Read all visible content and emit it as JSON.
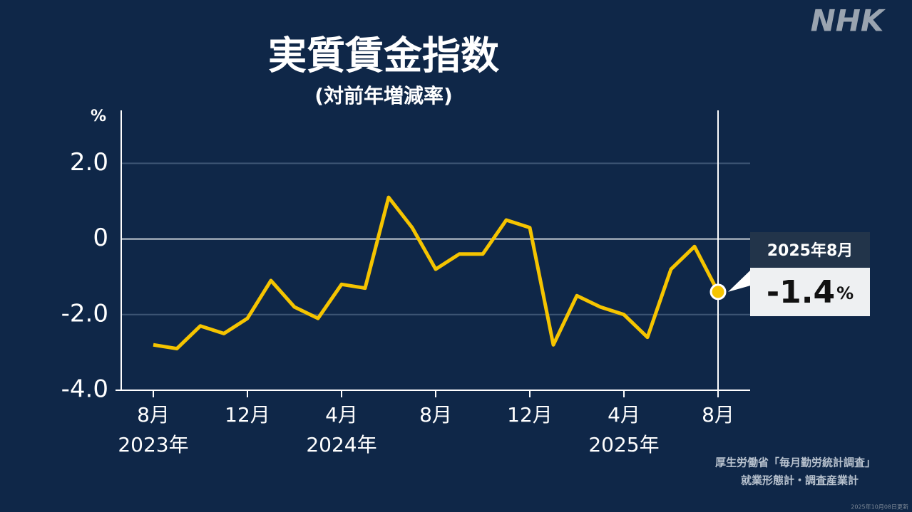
{
  "logo": "NHK",
  "updated": "2025年10月08日更新",
  "source": [
    "厚生労働省「毎月勤労統計調査」",
    "就業形態計・調査産業計"
  ],
  "chart_data": {
    "type": "line",
    "title": "実質賃金指数",
    "subtitle": "(対前年増減率)",
    "y_unit": "%",
    "categories": [
      "8月",
      null,
      null,
      null,
      "12月",
      null,
      null,
      null,
      "4月",
      null,
      null,
      null,
      "8月",
      null,
      null,
      null,
      "12月",
      null,
      null,
      null,
      "4月",
      null,
      null,
      null,
      "8月"
    ],
    "years": [
      "2023年",
      null,
      null,
      null,
      null,
      null,
      null,
      null,
      "2024年",
      null,
      null,
      null,
      null,
      null,
      null,
      null,
      null,
      null,
      null,
      null,
      "2025年",
      null,
      null,
      null,
      null
    ],
    "series": [
      {
        "name": "実質賃金指数",
        "color": "#f5c400",
        "values": [
          -2.8,
          -2.9,
          -2.3,
          -2.5,
          -2.1,
          -1.1,
          -1.8,
          -2.1,
          -1.2,
          -1.3,
          1.1,
          0.3,
          -0.8,
          -0.4,
          -0.4,
          0.5,
          0.3,
          -2.8,
          -1.5,
          -1.8,
          -2.0,
          -2.6,
          -0.8,
          -0.2,
          -1.4
        ]
      }
    ],
    "ylim": [
      -4,
      3.4
    ],
    "yticks": [
      {
        "value": -4,
        "label": "-4.0"
      },
      {
        "value": -2,
        "label": "-2.0"
      },
      0,
      {
        "value": 2,
        "label": "2.0"
      }
    ],
    "callout": {
      "label": "2025年8月"
    }
  }
}
